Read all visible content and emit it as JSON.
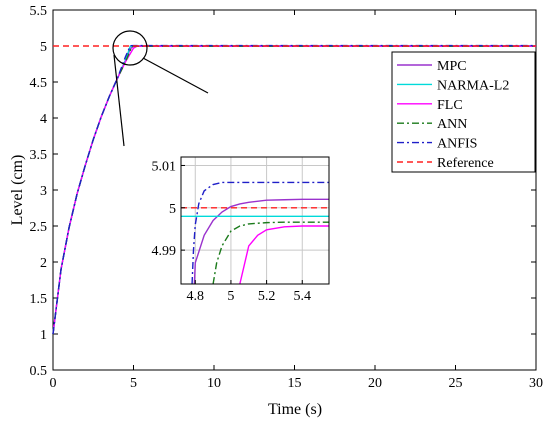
{
  "chart_data": {
    "type": "line",
    "xlabel": "Time (s)",
    "ylabel": "Level (cm)",
    "xlim": [
      0,
      30
    ],
    "ylim": [
      0.5,
      5.5
    ],
    "xticks": [
      0,
      5,
      10,
      15,
      20,
      25,
      30
    ],
    "yticks": [
      0.5,
      1,
      1.5,
      2,
      2.5,
      3,
      3.5,
      4,
      4.5,
      5,
      5.5
    ],
    "xtick_labels": [
      "0",
      "5",
      "10",
      "15",
      "20",
      "25",
      "30"
    ],
    "ytick_labels": [
      "0.5",
      "1",
      "1.5",
      "2",
      "2.5",
      "3",
      "3.5",
      "4",
      "4.5",
      "5",
      "5.5"
    ],
    "grid": false,
    "legend": {
      "placement": "right",
      "entries": [
        "MPC",
        "NARMA-L2",
        "FLC",
        "ANN",
        "ANFIS",
        "Reference"
      ]
    },
    "series": [
      {
        "name": "MPC",
        "color": "#9a32cd",
        "style": "solid",
        "x": [
          0,
          0.5,
          1,
          1.5,
          2,
          2.5,
          3,
          3.5,
          4,
          4.5,
          4.8,
          5,
          5.2,
          5.5,
          6,
          30
        ],
        "y": [
          1,
          1.9,
          2.48,
          2.95,
          3.34,
          3.7,
          4.02,
          4.3,
          4.55,
          4.8,
          4.96,
          4.999,
          5.0015,
          5.002,
          5.002,
          5.002
        ]
      },
      {
        "name": "NARMA-L2",
        "color": "#00dada",
        "style": "solid",
        "x": [
          0,
          0.5,
          1,
          1.5,
          2,
          2.5,
          3,
          3.5,
          4,
          4.5,
          4.8,
          5,
          5.5,
          30
        ],
        "y": [
          1,
          1.9,
          2.48,
          2.95,
          3.34,
          3.7,
          4.02,
          4.3,
          4.55,
          4.8,
          4.998,
          4.998,
          4.998,
          4.998
        ]
      },
      {
        "name": "FLC",
        "color": "#ff00ff",
        "style": "solid",
        "x": [
          0,
          0.5,
          1,
          1.5,
          2,
          2.5,
          3,
          3.5,
          4,
          4.5,
          5,
          5.2,
          5.5,
          6,
          30
        ],
        "y": [
          1,
          1.9,
          2.48,
          2.95,
          3.34,
          3.7,
          4.02,
          4.3,
          4.55,
          4.78,
          4.97,
          4.995,
          4.996,
          4.996,
          4.996
        ]
      },
      {
        "name": "ANN",
        "color": "#1a7a1a",
        "style": "dashdot",
        "x": [
          0,
          0.5,
          1,
          1.5,
          2,
          2.5,
          3,
          3.5,
          4,
          4.5,
          4.9,
          5,
          5.2,
          5.5,
          6,
          30
        ],
        "y": [
          1,
          1.9,
          2.48,
          2.95,
          3.34,
          3.7,
          4.02,
          4.3,
          4.55,
          4.78,
          4.99,
          4.995,
          4.9965,
          4.9968,
          4.9968,
          4.9968
        ]
      },
      {
        "name": "ANFIS",
        "color": "#1f1fc8",
        "style": "dashdot",
        "x": [
          0,
          0.5,
          1,
          1.5,
          2,
          2.5,
          3,
          3.5,
          4,
          4.5,
          4.8,
          4.85,
          5,
          5.2,
          5.5,
          30
        ],
        "y": [
          1,
          1.9,
          2.48,
          2.95,
          3.34,
          3.7,
          4.02,
          4.3,
          4.55,
          4.85,
          4.999,
          5.004,
          5.006,
          5.006,
          5.006,
          5.006
        ]
      },
      {
        "name": "Reference",
        "color": "#ff2020",
        "style": "dashed",
        "x": [
          0,
          30
        ],
        "y": [
          5,
          5
        ]
      }
    ],
    "inset": {
      "xlim": [
        4.72,
        5.55
      ],
      "ylim": [
        4.982,
        5.012
      ],
      "xticks": [
        4.8,
        5,
        5.2,
        5.4
      ],
      "yticks": [
        4.99,
        5,
        5.01
      ],
      "xtick_labels": [
        "4.8",
        "5",
        "5.2",
        "5.4"
      ],
      "ytick_labels": [
        "4.99",
        "5",
        "5.01"
      ],
      "grid": true,
      "series": [
        {
          "name": "MPC",
          "x": [
            4.795,
            4.8,
            4.85,
            4.9,
            4.95,
            5.0,
            5.05,
            5.1,
            5.2,
            5.3,
            5.4,
            5.55
          ],
          "y": [
            4.982,
            4.987,
            4.9935,
            4.997,
            4.999,
            5.0003,
            5.0009,
            5.0013,
            5.0018,
            5.0019,
            5.002,
            5.002
          ]
        },
        {
          "name": "NARMA-L2",
          "x": [
            4.72,
            5.55
          ],
          "y": [
            4.998,
            4.998
          ]
        },
        {
          "name": "FLC",
          "x": [
            5.05,
            5.1,
            5.15,
            5.2,
            5.3,
            5.4,
            5.55
          ],
          "y": [
            4.982,
            4.991,
            4.9935,
            4.9948,
            4.9955,
            4.9957,
            4.9957
          ]
        },
        {
          "name": "ANN",
          "x": [
            4.9,
            4.92,
            4.95,
            5.0,
            5.05,
            5.1,
            5.2,
            5.3,
            5.4,
            5.55
          ],
          "y": [
            4.982,
            4.987,
            4.991,
            4.9945,
            4.9957,
            4.9962,
            4.9965,
            4.9966,
            4.9966,
            4.9966
          ]
        },
        {
          "name": "ANFIS",
          "x": [
            4.782,
            4.79,
            4.8,
            4.82,
            4.85,
            4.9,
            4.95,
            5.0,
            5.1,
            5.2,
            5.55
          ],
          "y": [
            4.982,
            4.99,
            4.996,
            5.001,
            5.004,
            5.0055,
            5.006,
            5.006,
            5.006,
            5.006,
            5.006
          ]
        },
        {
          "name": "Reference",
          "x": [
            4.72,
            5.55
          ],
          "y": [
            5,
            5
          ]
        }
      ]
    }
  }
}
